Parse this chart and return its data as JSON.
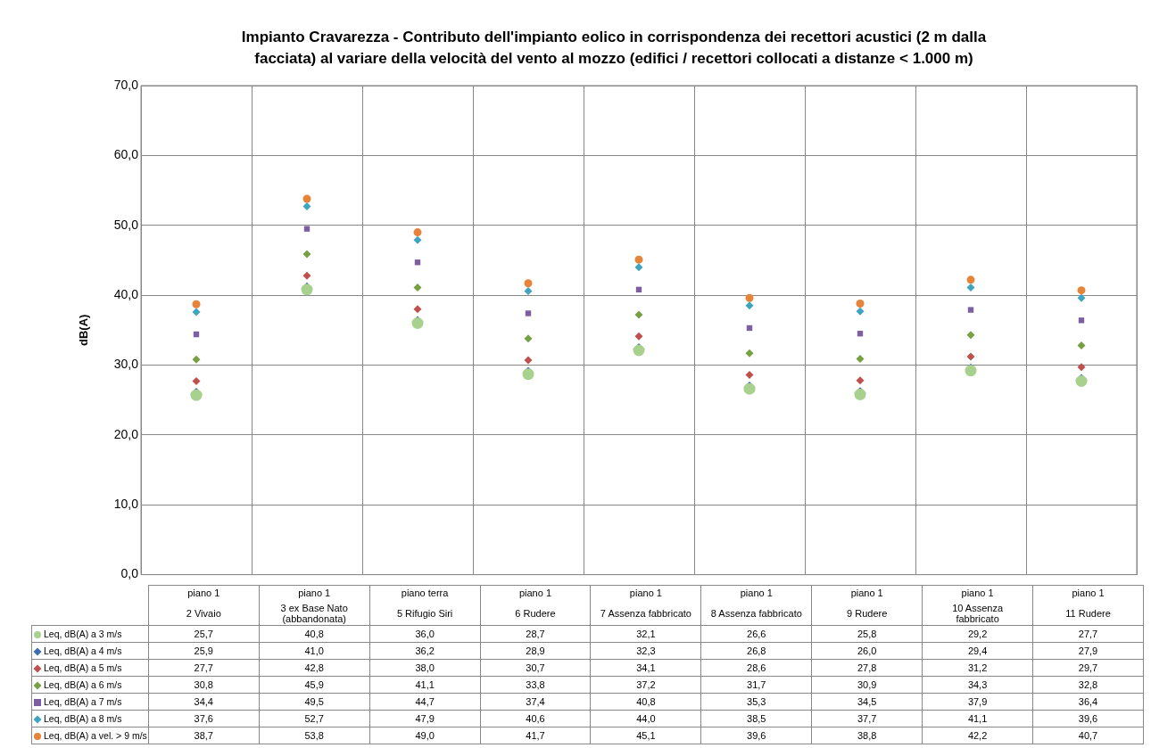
{
  "chart_data": {
    "type": "scatter",
    "title": "Impianto Cravarezza - Contributo dell'impianto eolico in corrispondenza dei recettori acustici (2 m dalla facciata) al variare della velocità del vento al mozzo (edifici / recettori collocati a distanze < 1.000 m)",
    "ylabel": "dB(A)",
    "categories": [
      "piano 1\n2 Vivaio",
      "piano 1\n3 ex Base Nato (abbandonata)",
      "piano terra\n5 Rifugio Siri",
      "piano 1\n6 Rudere",
      "piano 1\n7 Assenza fabbricato",
      "piano 1\n8 Assenza fabbricato",
      "piano 1\n9 Rudere",
      "piano 1\n10 Assenza fabbricato",
      "piano 1\n11 Rudere"
    ],
    "series": [
      {
        "name": "Leq, dB(A) a 3 m/s",
        "color": "#a9d18e",
        "marker": "circle",
        "values": [
          25.7,
          40.8,
          36.0,
          28.7,
          32.1,
          26.6,
          25.8,
          29.2,
          27.7
        ],
        "value_labels": [
          "25,7",
          "40,8",
          "36,0",
          "28,7",
          "32,1",
          "26,6",
          "25,8",
          "29,2",
          "27,7"
        ]
      },
      {
        "name": "Leq, dB(A) a 4 m/s",
        "color": "#3e6fb0",
        "marker": "diamond",
        "values": [
          25.9,
          41.0,
          36.2,
          28.9,
          32.3,
          26.8,
          26.0,
          29.4,
          27.9
        ],
        "value_labels": [
          "25,9",
          "41,0",
          "36,2",
          "28,9",
          "32,3",
          "26,8",
          "26,0",
          "29,4",
          "27,9"
        ]
      },
      {
        "name": "Leq, dB(A) a 5 m/s",
        "color": "#c0504d",
        "marker": "diamond",
        "values": [
          27.7,
          42.8,
          38.0,
          30.7,
          34.1,
          28.6,
          27.8,
          31.2,
          29.7
        ],
        "value_labels": [
          "27,7",
          "42,8",
          "38,0",
          "30,7",
          "34,1",
          "28,6",
          "27,8",
          "31,2",
          "29,7"
        ]
      },
      {
        "name": "Leq, dB(A) a 6 m/s",
        "color": "#77a043",
        "marker": "diamond",
        "values": [
          30.8,
          45.9,
          41.1,
          33.8,
          37.2,
          31.7,
          30.9,
          34.3,
          32.8
        ],
        "value_labels": [
          "30,8",
          "45,9",
          "41,1",
          "33,8",
          "37,2",
          "31,7",
          "30,9",
          "34,3",
          "32,8"
        ]
      },
      {
        "name": "Leq, dB(A) a 7 m/s",
        "color": "#7e5ea3",
        "marker": "square",
        "values": [
          34.4,
          49.5,
          44.7,
          37.4,
          40.8,
          35.3,
          34.5,
          37.9,
          36.4
        ],
        "value_labels": [
          "34,4",
          "49,5",
          "44,7",
          "37,4",
          "40,8",
          "35,3",
          "34,5",
          "37,9",
          "36,4"
        ]
      },
      {
        "name": "Leq, dB(A) a 8 m/s",
        "color": "#3fa4bf",
        "marker": "diamond",
        "values": [
          37.6,
          52.7,
          47.9,
          40.6,
          44.0,
          38.5,
          37.7,
          41.1,
          39.6
        ],
        "value_labels": [
          "37,6",
          "52,7",
          "47,9",
          "40,6",
          "44,0",
          "38,5",
          "37,7",
          "41,1",
          "39,6"
        ]
      },
      {
        "name": "Leq, dB(A) a vel. > 9 m/s",
        "color": "#e6843a",
        "marker": "circle",
        "values": [
          38.7,
          53.8,
          49.0,
          41.7,
          45.1,
          39.6,
          38.8,
          42.2,
          40.7
        ],
        "value_labels": [
          "38,7",
          "53,8",
          "49,0",
          "41,7",
          "45,1",
          "39,6",
          "38,8",
          "42,2",
          "40,7"
        ]
      }
    ],
    "ylim": [
      0,
      70
    ],
    "yticks": [
      {
        "value": 0,
        "label": "0,0"
      },
      {
        "value": 10,
        "label": "10,0"
      },
      {
        "value": 20,
        "label": "20,0"
      },
      {
        "value": 30,
        "label": "30,0"
      },
      {
        "value": 40,
        "label": "40,0"
      },
      {
        "value": 50,
        "label": "50,0"
      },
      {
        "value": 60,
        "label": "60,0"
      },
      {
        "value": 70,
        "label": "70,0"
      }
    ],
    "grid": true,
    "legend": "bottom"
  }
}
